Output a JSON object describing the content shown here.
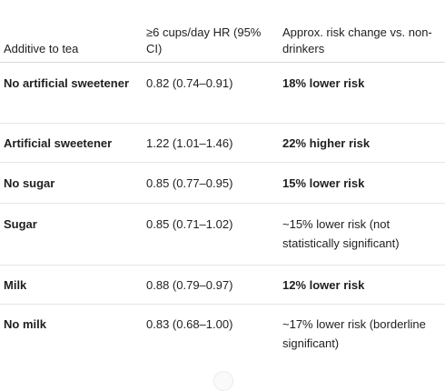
{
  "table": {
    "headers": [
      "Additive to tea",
      "≥6 cups/day HR (95% CI)",
      "Approx. risk change vs. non-drinkers"
    ],
    "rows": [
      {
        "additive": "No artificial sweetener",
        "hr": "0.82 (0.74–0.91)",
        "risk": "18% lower risk",
        "risk_bold": true
      },
      {
        "additive": "Artificial sweetener",
        "hr": "1.22 (1.01–1.46)",
        "risk": "22% higher risk",
        "risk_bold": true
      },
      {
        "additive": "No sugar",
        "hr": "0.85 (0.77–0.95)",
        "risk": "15% lower risk",
        "risk_bold": true
      },
      {
        "additive": "Sugar",
        "hr": "0.85 (0.71–1.02)",
        "risk": "~15% lower risk (not statistically significant)",
        "risk_bold": false
      },
      {
        "additive": "Milk",
        "hr": "0.88 (0.79–0.97)",
        "risk": "12% lower risk",
        "risk_bold": true
      },
      {
        "additive": "No milk",
        "hr": "0.83 (0.68–1.00)",
        "risk": "~17% lower risk (borderline significant)",
        "risk_bold": false
      }
    ]
  }
}
